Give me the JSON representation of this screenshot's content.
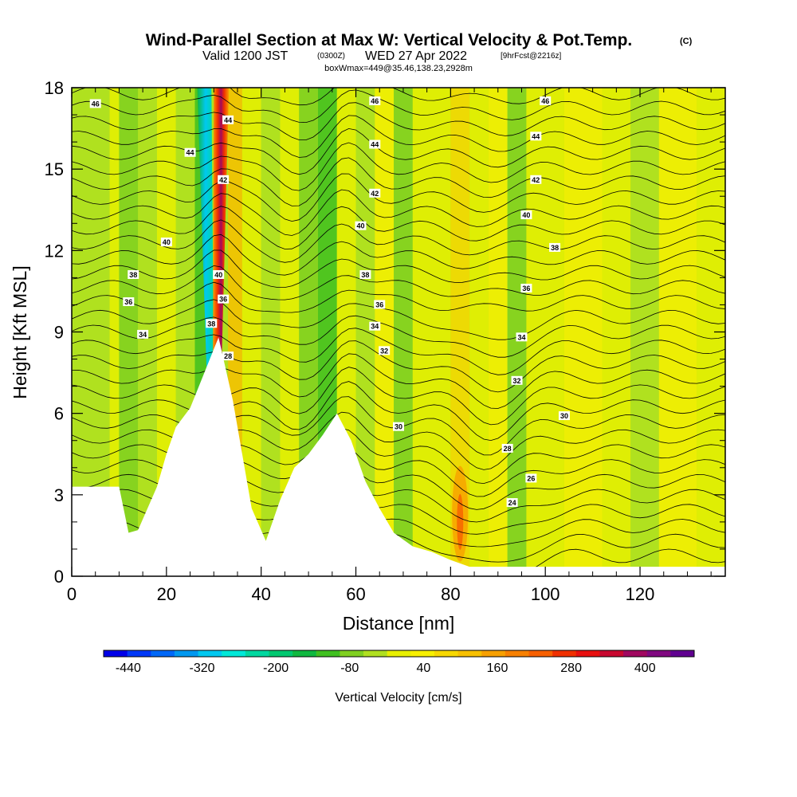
{
  "chart_data": {
    "type": "heatmap",
    "title": "Wind-Parallel Section at Max W: Vertical Velocity & Pot.Temp.",
    "title_tag": "(C)",
    "subtitle_valid": "Valid 1200 JST",
    "subtitle_utc": "(0300Z)",
    "subtitle_date": "WED 27 Apr 2022",
    "subtitle_fcst": "[9hrFcst@2216z]",
    "subtitle_box": "boxWmax=449@35.46,138.23,2928m",
    "xlabel": "Distance [nm]",
    "ylabel": "Height [Kft MSL]",
    "xlim": [
      0,
      138
    ],
    "ylim": [
      0,
      18
    ],
    "x_ticks": [
      "0",
      "20",
      "40",
      "60",
      "80",
      "100",
      "120"
    ],
    "y_ticks": [
      "0",
      "3",
      "6",
      "9",
      "12",
      "15",
      "18"
    ],
    "grid": false,
    "colorbar": {
      "label": "Vertical Velocity [cm/s]",
      "placement": "bottom",
      "min": -480,
      "max": 480,
      "tick_labels": [
        "-440",
        "-320",
        "-200",
        "-80",
        "40",
        "160",
        "280",
        "400"
      ],
      "tick_values": [
        -440,
        -320,
        -200,
        -80,
        40,
        160,
        280,
        400
      ],
      "colors": [
        "#0000e8",
        "#0038f8",
        "#0068f8",
        "#0098f0",
        "#00c8f0",
        "#00e8d8",
        "#00d8a0",
        "#00c870",
        "#10b840",
        "#40c020",
        "#80d020",
        "#b0e020",
        "#e8f000",
        "#f8f000",
        "#f8d800",
        "#f8c000",
        "#f8a000",
        "#f88000",
        "#f86000",
        "#f03000",
        "#e81010",
        "#c80830",
        "#a00860",
        "#800880",
        "#600090"
      ]
    },
    "contour_labels": [
      {
        "text": "46",
        "x": 5,
        "y": 17.4
      },
      {
        "text": "46",
        "x": 64,
        "y": 17.5
      },
      {
        "text": "46",
        "x": 100,
        "y": 17.5
      },
      {
        "text": "44",
        "x": 25,
        "y": 15.6
      },
      {
        "text": "44",
        "x": 33,
        "y": 16.8
      },
      {
        "text": "44",
        "x": 64,
        "y": 15.9
      },
      {
        "text": "44",
        "x": 98,
        "y": 16.2
      },
      {
        "text": "42",
        "x": 32,
        "y": 14.6
      },
      {
        "text": "42",
        "x": 64,
        "y": 14.1
      },
      {
        "text": "42",
        "x": 98,
        "y": 14.6
      },
      {
        "text": "40",
        "x": 20,
        "y": 12.3
      },
      {
        "text": "40",
        "x": 31,
        "y": 11.1
      },
      {
        "text": "40",
        "x": 61,
        "y": 12.9
      },
      {
        "text": "40",
        "x": 96,
        "y": 13.3
      },
      {
        "text": "38",
        "x": 13,
        "y": 11.1
      },
      {
        "text": "38",
        "x": 29.5,
        "y": 9.3
      },
      {
        "text": "38",
        "x": 62,
        "y": 11.1
      },
      {
        "text": "38",
        "x": 102,
        "y": 12.1
      },
      {
        "text": "36",
        "x": 12,
        "y": 10.1
      },
      {
        "text": "36",
        "x": 32,
        "y": 10.2
      },
      {
        "text": "36",
        "x": 65,
        "y": 10.0
      },
      {
        "text": "36",
        "x": 96,
        "y": 10.6
      },
      {
        "text": "34",
        "x": 15,
        "y": 8.9
      },
      {
        "text": "34",
        "x": 64,
        "y": 9.2
      },
      {
        "text": "34",
        "x": 95,
        "y": 8.8
      },
      {
        "text": "32",
        "x": 66,
        "y": 8.3
      },
      {
        "text": "32",
        "x": 94,
        "y": 7.2
      },
      {
        "text": "30",
        "x": 69,
        "y": 5.5
      },
      {
        "text": "30",
        "x": 104,
        "y": 5.9
      },
      {
        "text": "28",
        "x": 33,
        "y": 8.1
      },
      {
        "text": "28",
        "x": 92,
        "y": 4.7
      },
      {
        "text": "26",
        "x": 97,
        "y": 3.6
      },
      {
        "text": "24",
        "x": 93,
        "y": 2.7
      }
    ]
  }
}
